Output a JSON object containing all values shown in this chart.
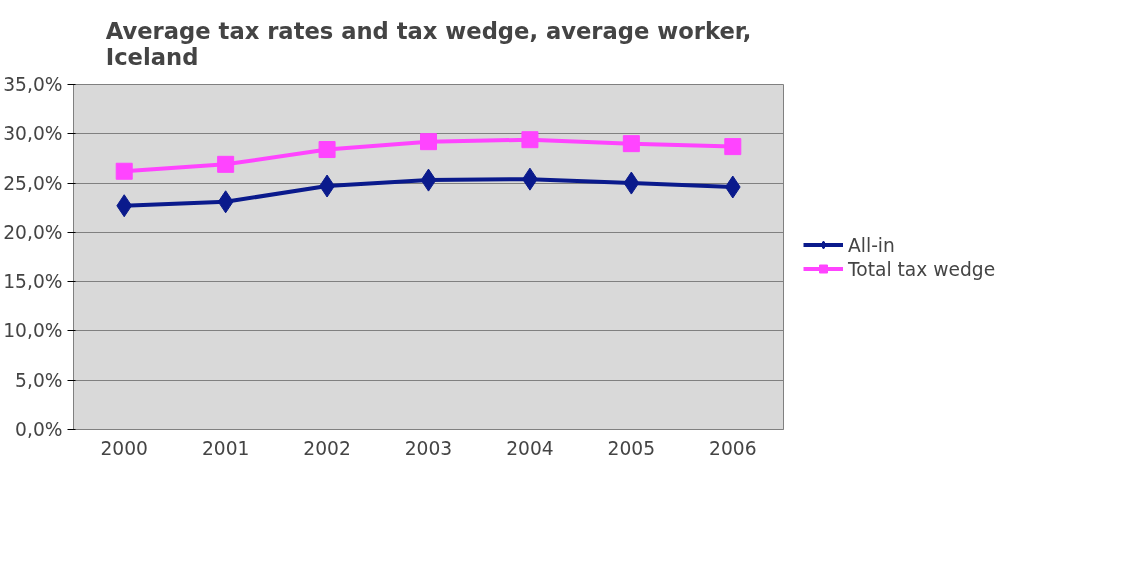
{
  "chart_data": {
    "type": "line",
    "title": "Average tax rates and tax wedge, average worker, Iceland",
    "categories": [
      "2000",
      "2001",
      "2002",
      "2003",
      "2004",
      "2005",
      "2006"
    ],
    "series": [
      {
        "name": "All-in",
        "color": "#0a1a8c",
        "marker": "diamond",
        "values": [
          22.7,
          23.1,
          24.7,
          25.3,
          25.4,
          25.0,
          24.6
        ]
      },
      {
        "name": "Total tax wedge",
        "color": "#ff44ff",
        "marker": "square",
        "values": [
          26.2,
          26.9,
          28.4,
          29.2,
          29.4,
          29.0,
          28.7
        ]
      }
    ],
    "ylim": [
      0,
      35
    ],
    "yticks": [
      {
        "value": 0,
        "label": "0,0%"
      },
      {
        "value": 5,
        "label": "5,0%"
      },
      {
        "value": 10,
        "label": "10,0%"
      },
      {
        "value": 15,
        "label": "15,0%"
      },
      {
        "value": 20,
        "label": "20,0%"
      },
      {
        "value": 25,
        "label": "25,0%"
      },
      {
        "value": 30,
        "label": "30,0%"
      },
      {
        "value": 35,
        "label": "35,0%"
      }
    ],
    "grid": "y",
    "legend": "right",
    "line_style": "solid"
  }
}
